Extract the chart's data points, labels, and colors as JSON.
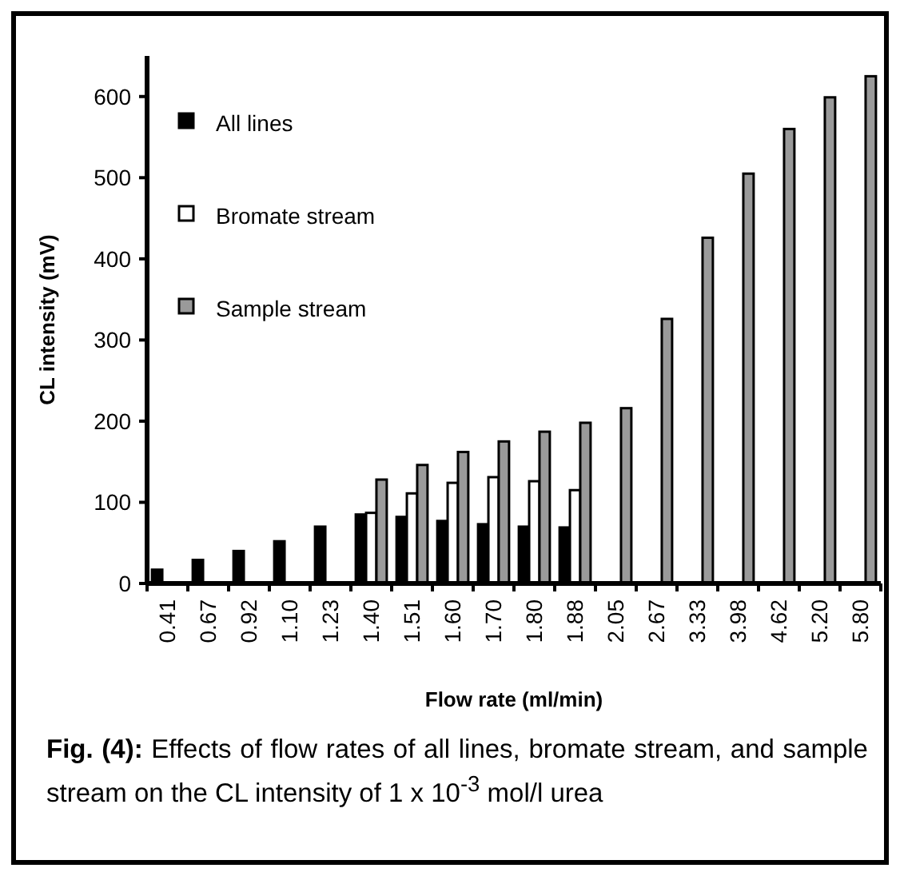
{
  "chart_data": {
    "type": "bar",
    "xlabel": "Flow rate (ml/min)",
    "ylabel": "CL intensity (mV)",
    "categories": [
      "0.41",
      "0.67",
      "0.92",
      "1.10",
      "1.23",
      "1.40",
      "1.51",
      "1.60",
      "1.70",
      "1.80",
      "1.88",
      "2.05",
      "2.67",
      "3.33",
      "3.98",
      "4.62",
      "5.20",
      "5.80"
    ],
    "series": [
      {
        "name": "All lines",
        "color": "#000000",
        "values": [
          17,
          29,
          40,
          52,
          70,
          85,
          82,
          77,
          73,
          70,
          69,
          null,
          null,
          null,
          null,
          null,
          null,
          null
        ]
      },
      {
        "name": "Bromate stream",
        "color": "#ffffff",
        "values": [
          null,
          null,
          null,
          null,
          null,
          87,
          111,
          124,
          131,
          126,
          115,
          null,
          null,
          null,
          null,
          null,
          null,
          null
        ]
      },
      {
        "name": "Sample stream",
        "color": "#9a9a9a",
        "values": [
          null,
          null,
          null,
          null,
          null,
          128,
          146,
          162,
          175,
          187,
          198,
          216,
          326,
          426,
          505,
          560,
          599,
          625
        ]
      }
    ],
    "ylim": [
      0,
      650
    ],
    "yticks": [
      0,
      100,
      200,
      300,
      400,
      500,
      600
    ],
    "grid": false,
    "legend": "top left",
    "annotations": [
      "Fig. (4): Effects of flow rates of all lines, bromate stream, and sample stream on the CL intensity of 1 x 10$^{-3}$ mol/l urea"
    ]
  }
}
